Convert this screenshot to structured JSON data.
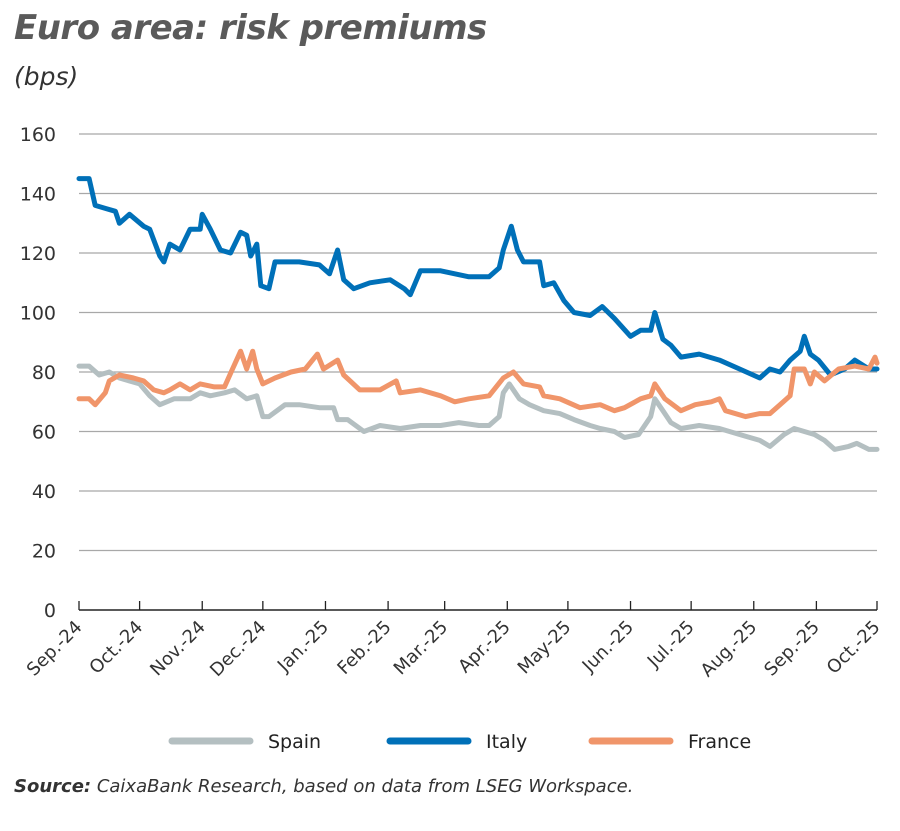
{
  "chart_data": {
    "type": "line",
    "title": "Euro area: risk premiums",
    "subtitle": "(bps)",
    "xlabel": "",
    "ylabel": "",
    "ylim": [
      0,
      160
    ],
    "yticks": [
      0,
      20,
      40,
      60,
      80,
      100,
      120,
      140,
      160
    ],
    "xlim": [
      "2024-09-01",
      "2025-10-01"
    ],
    "xticks": [
      {
        "date": "2024-09-01",
        "label": "Sep.-24"
      },
      {
        "date": "2024-10-01",
        "label": "Oct.-24"
      },
      {
        "date": "2024-11-01",
        "label": "Nov.-24"
      },
      {
        "date": "2024-12-01",
        "label": "Dec.-24"
      },
      {
        "date": "2025-01-01",
        "label": "Jan.-25"
      },
      {
        "date": "2025-02-01",
        "label": "Feb.-25"
      },
      {
        "date": "2025-03-01",
        "label": "Mar.-25"
      },
      {
        "date": "2025-04-01",
        "label": "Apr.-25"
      },
      {
        "date": "2025-05-01",
        "label": "May-25"
      },
      {
        "date": "2025-06-01",
        "label": "Jun.-25"
      },
      {
        "date": "2025-07-01",
        "label": "Jul.-25"
      },
      {
        "date": "2025-08-01",
        "label": "Aug.-25"
      },
      {
        "date": "2025-09-01",
        "label": "Sep.-25"
      },
      {
        "date": "2025-10-01",
        "label": "Oct.-25"
      }
    ],
    "grid": true,
    "legend_position": "bottom",
    "series": [
      {
        "name": "Spain",
        "color": "#b4bfc1",
        "points": [
          [
            "2024-09-01",
            82
          ],
          [
            "2024-09-06",
            82
          ],
          [
            "2024-09-11",
            79
          ],
          [
            "2024-09-16",
            80
          ],
          [
            "2024-09-21",
            78
          ],
          [
            "2024-10-01",
            76
          ],
          [
            "2024-10-06",
            72
          ],
          [
            "2024-10-11",
            69
          ],
          [
            "2024-10-18",
            71
          ],
          [
            "2024-10-26",
            71
          ],
          [
            "2024-10-31",
            73
          ],
          [
            "2024-11-05",
            72
          ],
          [
            "2024-11-12",
            73
          ],
          [
            "2024-11-17",
            74
          ],
          [
            "2024-11-23",
            71
          ],
          [
            "2024-11-28",
            72
          ],
          [
            "2024-12-01",
            65
          ],
          [
            "2024-12-04",
            65
          ],
          [
            "2024-12-12",
            69
          ],
          [
            "2024-12-19",
            69
          ],
          [
            "2024-12-29",
            68
          ],
          [
            "2025-01-05",
            68
          ],
          [
            "2025-01-07",
            64
          ],
          [
            "2025-01-12",
            64
          ],
          [
            "2025-01-20",
            60
          ],
          [
            "2025-01-28",
            62
          ],
          [
            "2025-02-07",
            61
          ],
          [
            "2025-02-17",
            62
          ],
          [
            "2025-02-27",
            62
          ],
          [
            "2025-03-08",
            63
          ],
          [
            "2025-03-18",
            62
          ],
          [
            "2025-03-23",
            62
          ],
          [
            "2025-03-28",
            65
          ],
          [
            "2025-03-30",
            73
          ],
          [
            "2025-04-02",
            76
          ],
          [
            "2025-04-07",
            71
          ],
          [
            "2025-04-12",
            69
          ],
          [
            "2025-04-19",
            67
          ],
          [
            "2025-04-27",
            66
          ],
          [
            "2025-05-04",
            64
          ],
          [
            "2025-05-12",
            62
          ],
          [
            "2025-05-17",
            61
          ],
          [
            "2025-05-24",
            60
          ],
          [
            "2025-05-29",
            58
          ],
          [
            "2025-06-05",
            59
          ],
          [
            "2025-06-11",
            65
          ],
          [
            "2025-06-13",
            71
          ],
          [
            "2025-06-17",
            67
          ],
          [
            "2025-06-21",
            63
          ],
          [
            "2025-06-26",
            61
          ],
          [
            "2025-07-05",
            62
          ],
          [
            "2025-07-15",
            61
          ],
          [
            "2025-07-25",
            59
          ],
          [
            "2025-08-04",
            57
          ],
          [
            "2025-08-09",
            55
          ],
          [
            "2025-08-16",
            59
          ],
          [
            "2025-08-21",
            61
          ],
          [
            "2025-08-26",
            60
          ],
          [
            "2025-08-31",
            59
          ],
          [
            "2025-09-05",
            57
          ],
          [
            "2025-09-10",
            54
          ],
          [
            "2025-09-17",
            55
          ],
          [
            "2025-09-21",
            56
          ],
          [
            "2025-09-27",
            54
          ],
          [
            "2025-10-01",
            54
          ]
        ]
      },
      {
        "name": "Italy",
        "color": "#0070b8",
        "points": [
          [
            "2024-09-01",
            145
          ],
          [
            "2024-09-06",
            145
          ],
          [
            "2024-09-09",
            136
          ],
          [
            "2024-09-14",
            135
          ],
          [
            "2024-09-19",
            134
          ],
          [
            "2024-09-21",
            130
          ],
          [
            "2024-09-26",
            133
          ],
          [
            "2024-10-03",
            129
          ],
          [
            "2024-10-06",
            128
          ],
          [
            "2024-10-11",
            119
          ],
          [
            "2024-10-13",
            117
          ],
          [
            "2024-10-16",
            123
          ],
          [
            "2024-10-21",
            121
          ],
          [
            "2024-10-26",
            128
          ],
          [
            "2024-10-31",
            128
          ],
          [
            "2024-11-01",
            133
          ],
          [
            "2024-11-05",
            128
          ],
          [
            "2024-11-10",
            121
          ],
          [
            "2024-11-15",
            120
          ],
          [
            "2024-11-20",
            127
          ],
          [
            "2024-11-23",
            126
          ],
          [
            "2024-11-25",
            119
          ],
          [
            "2024-11-28",
            123
          ],
          [
            "2024-11-30",
            109
          ],
          [
            "2024-12-04",
            108
          ],
          [
            "2024-12-07",
            117
          ],
          [
            "2024-12-12",
            117
          ],
          [
            "2024-12-19",
            117
          ],
          [
            "2024-12-29",
            116
          ],
          [
            "2025-01-03",
            113
          ],
          [
            "2025-01-07",
            121
          ],
          [
            "2025-01-10",
            111
          ],
          [
            "2025-01-15",
            108
          ],
          [
            "2025-01-23",
            110
          ],
          [
            "2025-02-02",
            111
          ],
          [
            "2025-02-09",
            108
          ],
          [
            "2025-02-12",
            106
          ],
          [
            "2025-02-17",
            114
          ],
          [
            "2025-02-27",
            114
          ],
          [
            "2025-03-06",
            113
          ],
          [
            "2025-03-13",
            112
          ],
          [
            "2025-03-23",
            112
          ],
          [
            "2025-03-28",
            115
          ],
          [
            "2025-03-30",
            121
          ],
          [
            "2025-04-02",
            127
          ],
          [
            "2025-04-03",
            129
          ],
          [
            "2025-04-06",
            121
          ],
          [
            "2025-04-09",
            117
          ],
          [
            "2025-04-17",
            117
          ],
          [
            "2025-04-19",
            109
          ],
          [
            "2025-04-24",
            110
          ],
          [
            "2025-04-29",
            104
          ],
          [
            "2025-05-04",
            100
          ],
          [
            "2025-05-12",
            99
          ],
          [
            "2025-05-18",
            102
          ],
          [
            "2025-05-24",
            98
          ],
          [
            "2025-06-01",
            92
          ],
          [
            "2025-06-06",
            94
          ],
          [
            "2025-06-11",
            94
          ],
          [
            "2025-06-13",
            100
          ],
          [
            "2025-06-17",
            91
          ],
          [
            "2025-06-21",
            89
          ],
          [
            "2025-06-26",
            85
          ],
          [
            "2025-07-05",
            86
          ],
          [
            "2025-07-15",
            84
          ],
          [
            "2025-07-25",
            81
          ],
          [
            "2025-08-04",
            78
          ],
          [
            "2025-08-09",
            81
          ],
          [
            "2025-08-14",
            80
          ],
          [
            "2025-08-19",
            84
          ],
          [
            "2025-08-24",
            87
          ],
          [
            "2025-08-26",
            92
          ],
          [
            "2025-08-29",
            86
          ],
          [
            "2025-09-02",
            84
          ],
          [
            "2025-09-08",
            79
          ],
          [
            "2025-09-15",
            81
          ],
          [
            "2025-09-20",
            84
          ],
          [
            "2025-09-27",
            81
          ],
          [
            "2025-10-01",
            81
          ]
        ]
      },
      {
        "name": "France",
        "color": "#f0956a",
        "points": [
          [
            "2024-09-01",
            71
          ],
          [
            "2024-09-06",
            71
          ],
          [
            "2024-09-09",
            69
          ],
          [
            "2024-09-14",
            73
          ],
          [
            "2024-09-16",
            77
          ],
          [
            "2024-09-21",
            79
          ],
          [
            "2024-09-28",
            78
          ],
          [
            "2024-10-03",
            77
          ],
          [
            "2024-10-08",
            74
          ],
          [
            "2024-10-13",
            73
          ],
          [
            "2024-10-16",
            74
          ],
          [
            "2024-10-21",
            76
          ],
          [
            "2024-10-26",
            74
          ],
          [
            "2024-10-31",
            76
          ],
          [
            "2024-11-07",
            75
          ],
          [
            "2024-11-12",
            75
          ],
          [
            "2024-11-16",
            81
          ],
          [
            "2024-11-20",
            87
          ],
          [
            "2024-11-23",
            81
          ],
          [
            "2024-11-26",
            87
          ],
          [
            "2024-11-28",
            81
          ],
          [
            "2024-12-01",
            76
          ],
          [
            "2024-12-07",
            78
          ],
          [
            "2024-12-15",
            80
          ],
          [
            "2024-12-22",
            81
          ],
          [
            "2024-12-28",
            86
          ],
          [
            "2024-12-31",
            81
          ],
          [
            "2025-01-07",
            84
          ],
          [
            "2025-01-10",
            79
          ],
          [
            "2025-01-18",
            74
          ],
          [
            "2025-01-28",
            74
          ],
          [
            "2025-02-05",
            77
          ],
          [
            "2025-02-07",
            73
          ],
          [
            "2025-02-17",
            74
          ],
          [
            "2025-02-27",
            72
          ],
          [
            "2025-03-06",
            70
          ],
          [
            "2025-03-13",
            71
          ],
          [
            "2025-03-23",
            72
          ],
          [
            "2025-03-30",
            78
          ],
          [
            "2025-04-04",
            80
          ],
          [
            "2025-04-09",
            76
          ],
          [
            "2025-04-17",
            75
          ],
          [
            "2025-04-19",
            72
          ],
          [
            "2025-04-27",
            71
          ],
          [
            "2025-05-07",
            68
          ],
          [
            "2025-05-17",
            69
          ],
          [
            "2025-05-24",
            67
          ],
          [
            "2025-05-29",
            68
          ],
          [
            "2025-06-06",
            71
          ],
          [
            "2025-06-11",
            72
          ],
          [
            "2025-06-13",
            76
          ],
          [
            "2025-06-18",
            71
          ],
          [
            "2025-06-26",
            67
          ],
          [
            "2025-07-03",
            69
          ],
          [
            "2025-07-11",
            70
          ],
          [
            "2025-07-15",
            71
          ],
          [
            "2025-07-18",
            67
          ],
          [
            "2025-07-28",
            65
          ],
          [
            "2025-08-04",
            66
          ],
          [
            "2025-08-09",
            66
          ],
          [
            "2025-08-14",
            69
          ],
          [
            "2025-08-19",
            72
          ],
          [
            "2025-08-21",
            81
          ],
          [
            "2025-08-26",
            81
          ],
          [
            "2025-08-29",
            76
          ],
          [
            "2025-08-31",
            80
          ],
          [
            "2025-09-05",
            77
          ],
          [
            "2025-09-12",
            81
          ],
          [
            "2025-09-20",
            82
          ],
          [
            "2025-09-27",
            81
          ],
          [
            "2025-09-30",
            85
          ],
          [
            "2025-10-01",
            83
          ]
        ]
      }
    ]
  },
  "source": {
    "label": "Source:",
    "text": " CaixaBank Research, based on data from LSEG Workspace."
  }
}
